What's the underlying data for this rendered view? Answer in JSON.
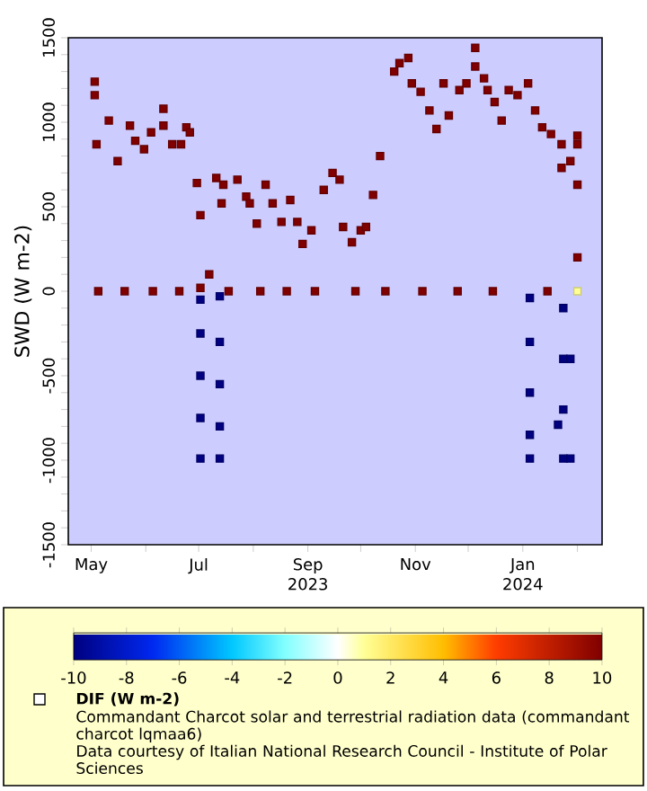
{
  "chart_data": {
    "type": "scatter",
    "title": "Commandant Charcot solar and terrestrial radiation data (commandant charcot lqmaa6)",
    "ylabel": "SWD (W m-2)",
    "clabel": "DIF (W m-2)",
    "annotations": [
      "2023",
      "2024",
      "Data courtesy of Italian National Research Council - Institute of Polar Sciences"
    ],
    "marker": "square",
    "x": [
      "2023-05-03",
      "2023-05-03",
      "2023-05-04",
      "2023-05-05",
      "2023-05-11",
      "2023-05-16",
      "2023-05-20",
      "2023-05-23",
      "2023-05-26",
      "2023-05-31",
      "2023-06-04",
      "2023-06-05",
      "2023-06-11",
      "2023-06-11",
      "2023-06-16",
      "2023-06-20",
      "2023-06-21",
      "2023-06-24",
      "2023-06-26",
      "2023-06-30",
      "2023-07-02",
      "2023-07-02",
      "2023-07-02",
      "2023-07-02",
      "2023-07-02",
      "2023-07-02",
      "2023-07-02",
      "2023-07-07",
      "2023-07-11",
      "2023-07-13",
      "2023-07-13",
      "2023-07-13",
      "2023-07-13",
      "2023-07-13",
      "2023-07-14",
      "2023-07-15",
      "2023-07-18",
      "2023-07-23",
      "2023-07-28",
      "2023-07-30",
      "2023-08-03",
      "2023-08-05",
      "2023-08-08",
      "2023-08-12",
      "2023-08-17",
      "2023-08-20",
      "2023-08-22",
      "2023-08-26",
      "2023-08-29",
      "2023-09-03",
      "2023-09-05",
      "2023-09-10",
      "2023-09-15",
      "2023-09-19",
      "2023-09-21",
      "2023-09-26",
      "2023-09-28",
      "2023-10-01",
      "2023-10-04",
      "2023-10-08",
      "2023-10-12",
      "2023-10-15",
      "2023-10-20",
      "2023-10-23",
      "2023-10-28",
      "2023-10-30",
      "2023-11-04",
      "2023-11-05",
      "2023-11-09",
      "2023-11-13",
      "2023-11-17",
      "2023-11-20",
      "2023-11-25",
      "2023-11-26",
      "2023-11-30",
      "2023-12-05",
      "2023-12-05",
      "2023-12-10",
      "2023-12-12",
      "2023-12-15",
      "2023-12-16",
      "2023-12-20",
      "2023-12-24",
      "2023-12-29",
      "2024-01-04",
      "2024-01-05",
      "2024-01-05",
      "2024-01-05",
      "2024-01-05",
      "2024-01-05",
      "2024-01-08",
      "2024-01-12",
      "2024-01-15",
      "2024-01-17",
      "2024-01-21",
      "2024-01-23",
      "2024-01-23",
      "2024-01-24",
      "2024-01-24",
      "2024-01-24",
      "2024-01-24",
      "2024-01-28",
      "2024-01-28",
      "2024-01-28",
      "2024-02-01",
      "2024-02-01",
      "2024-02-01",
      "2024-02-01",
      "2024-02-01"
    ],
    "values": [
      1240,
      1160,
      870,
      0,
      1010,
      770,
      0,
      980,
      890,
      840,
      940,
      0,
      1080,
      980,
      870,
      0,
      870,
      970,
      940,
      640,
      450,
      20,
      -50,
      -250,
      -500,
      -750,
      -990,
      100,
      670,
      -30,
      -300,
      -550,
      -800,
      -990,
      520,
      630,
      0,
      660,
      560,
      520,
      400,
      0,
      630,
      520,
      410,
      0,
      540,
      410,
      280,
      360,
      0,
      600,
      700,
      660,
      380,
      290,
      0,
      360,
      380,
      570,
      800,
      0,
      1300,
      1350,
      1380,
      1230,
      1180,
      0,
      1070,
      960,
      1230,
      1040,
      0,
      1190,
      1230,
      1440,
      1330,
      1260,
      1190,
      0,
      1120,
      1010,
      1190,
      1160,
      1230,
      -40,
      -300,
      -600,
      -850,
      -990,
      1070,
      970,
      0,
      930,
      -790,
      870,
      730,
      -100,
      -400,
      -700,
      -990,
      770,
      -400,
      -990,
      920,
      870,
      630,
      200,
      0
    ],
    "cvalues": [
      10,
      10,
      10,
      10,
      10,
      10,
      10,
      10,
      10,
      10,
      10,
      10,
      10,
      10,
      10,
      10,
      10,
      10,
      10,
      10,
      10,
      10,
      -10,
      -10,
      -10,
      -10,
      -10,
      10,
      10,
      -10,
      -10,
      -10,
      -10,
      -10,
      10,
      10,
      10,
      10,
      10,
      10,
      10,
      10,
      10,
      10,
      10,
      10,
      10,
      10,
      10,
      10,
      10,
      10,
      10,
      10,
      10,
      10,
      10,
      10,
      10,
      10,
      10,
      10,
      10,
      10,
      10,
      10,
      10,
      10,
      10,
      10,
      10,
      10,
      10,
      10,
      10,
      10,
      10,
      10,
      10,
      10,
      10,
      10,
      10,
      10,
      10,
      -10,
      -10,
      -10,
      -10,
      -10,
      10,
      10,
      10,
      10,
      -10,
      10,
      10,
      -10,
      -10,
      -10,
      -10,
      10,
      -10,
      -10,
      10,
      10,
      10,
      10,
      1
    ],
    "xlim": [
      "2023-04-18",
      "2024-02-15"
    ],
    "xticks": [
      {
        "value": "2023-05-01",
        "label": "May"
      },
      {
        "value": "2023-06-01",
        "label": null
      },
      {
        "value": "2023-07-01",
        "label": "Jul"
      },
      {
        "value": "2023-08-01",
        "label": null
      },
      {
        "value": "2023-09-01",
        "label": "Sep"
      },
      {
        "value": "2023-10-01",
        "label": null
      },
      {
        "value": "2023-11-01",
        "label": "Nov"
      },
      {
        "value": "2023-12-01",
        "label": null
      },
      {
        "value": "2024-01-01",
        "label": "Jan"
      },
      {
        "value": "2024-02-01",
        "label": null
      }
    ],
    "ylim": [
      -1500,
      1500
    ],
    "yticks": [
      -1500,
      {
        "value": -1400,
        "label": null
      },
      {
        "value": -1300,
        "label": null
      },
      {
        "value": -1200,
        "label": null
      },
      {
        "value": -1100,
        "label": null
      },
      -1000,
      {
        "value": -900,
        "label": null
      },
      {
        "value": -800,
        "label": null
      },
      {
        "value": -700,
        "label": null
      },
      {
        "value": -600,
        "label": null
      },
      -500,
      {
        "value": -400,
        "label": null
      },
      {
        "value": -300,
        "label": null
      },
      {
        "value": -200,
        "label": null
      },
      {
        "value": -100,
        "label": null
      },
      0,
      {
        "value": 100,
        "label": null
      },
      {
        "value": 200,
        "label": null
      },
      {
        "value": 300,
        "label": null
      },
      {
        "value": 400,
        "label": null
      },
      500,
      {
        "value": 600,
        "label": null
      },
      {
        "value": 700,
        "label": null
      },
      {
        "value": 800,
        "label": null
      },
      {
        "value": 900,
        "label": null
      },
      1000,
      {
        "value": 1100,
        "label": null
      },
      {
        "value": 1200,
        "label": null
      },
      {
        "value": 1300,
        "label": null
      },
      {
        "value": 1400,
        "label": null
      },
      1500
    ],
    "clim": [
      -10,
      10
    ],
    "cticks": [
      -10,
      -8,
      -6,
      -4,
      -2,
      0,
      2,
      4,
      6,
      8,
      10
    ]
  }
}
